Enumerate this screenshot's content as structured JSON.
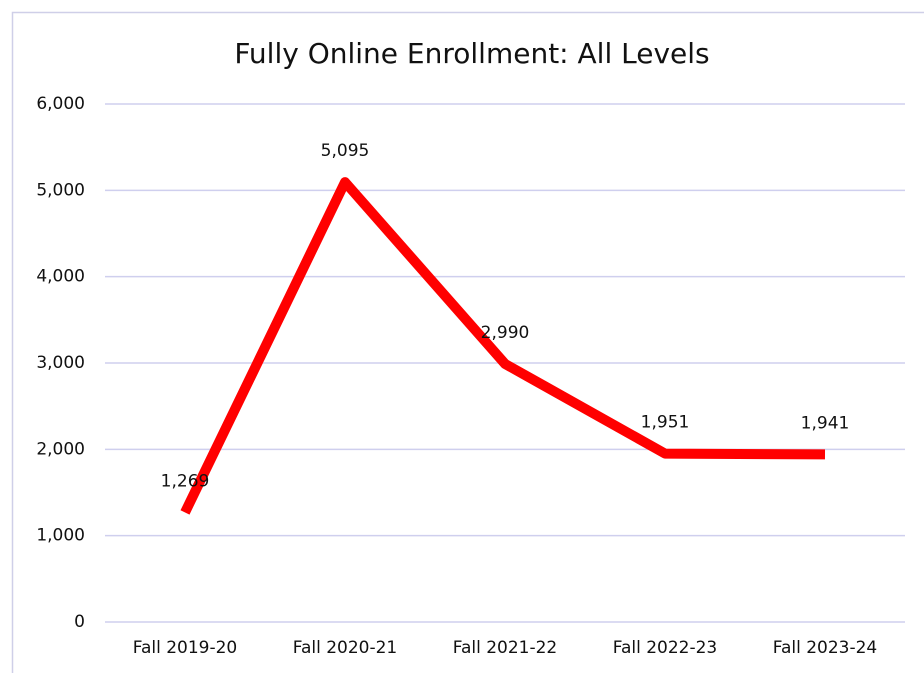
{
  "chart_data": {
    "type": "line",
    "title": "Fully Online Enrollment: All Levels",
    "categories": [
      "Fall 2019-20",
      "Fall 2020-21",
      "Fall 2021-22",
      "Fall 2022-23",
      "Fall 2023-24"
    ],
    "values": [
      1269,
      5095,
      2990,
      1951,
      1941
    ],
    "value_labels": [
      "1,269",
      "5,095",
      "2,990",
      "1,951",
      "1,941"
    ],
    "color": "#ff0000",
    "ylim": [
      0,
      6000
    ],
    "yticks": [
      0,
      {
        "value": 1000,
        "label": "1,000"
      },
      {
        "value": 2000,
        "label": "2,000"
      },
      {
        "value": 3000,
        "label": "3,000"
      },
      {
        "value": 4000,
        "label": "4,000"
      },
      {
        "value": 5000,
        "label": "5,000"
      },
      {
        "value": 6000,
        "label": "6,000"
      }
    ],
    "grid": true
  }
}
